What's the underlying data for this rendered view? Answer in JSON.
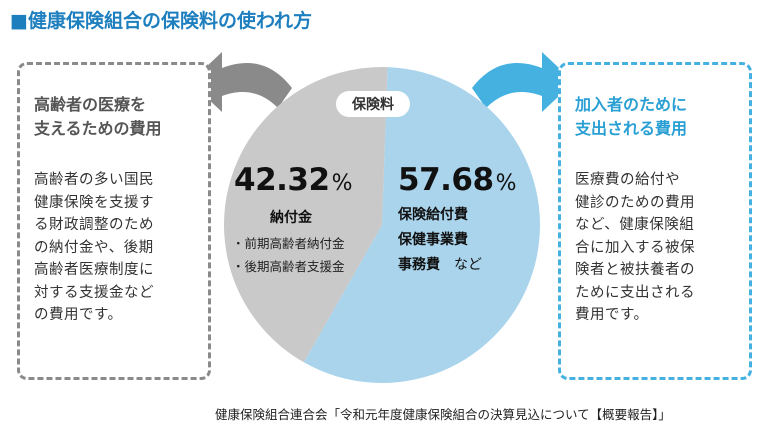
{
  "title": "■健康保険組合の保険料の使われ方",
  "center_label": "保険料",
  "left_box": {
    "heading_line1": "高齢者の医療を",
    "heading_line2": "支えるための費用",
    "body_lines": [
      "高齢者の多い国民",
      "健康保険を支援す",
      "る財政調整のため",
      "の納付金や、後期",
      "高齢者医療制度に",
      "対する支援金など",
      "の費用です。"
    ]
  },
  "right_box": {
    "heading_line1": "加入者のために",
    "heading_line2": "支出される費用",
    "body_lines": [
      "医療費の給付や",
      "健診のための費用",
      "など、健康保険組",
      "合に加入する被保",
      "険者と被扶養者の",
      "ために支出される",
      "費用です。"
    ]
  },
  "chart_data": {
    "type": "pie",
    "title": "",
    "slices": [
      {
        "label": "納付金",
        "value": 42.32,
        "value_text": "42.32",
        "unit": "%",
        "items": [
          "・前期高齢者納付金",
          "・後期高齢者支援金"
        ],
        "color": "#c9c9c9"
      },
      {
        "label": "保険給付費",
        "value": 57.68,
        "value_text": "57.68",
        "unit": "%",
        "items": [
          "保険給付費",
          "保健事業費",
          "事務費"
        ],
        "items_suffix": "など",
        "color": "#a9d4ec"
      }
    ]
  },
  "colors": {
    "accent_blue": "#1e7fbf",
    "left_arrow": "#8a8a8a",
    "right_arrow": "#45b1e0"
  },
  "source": "健康保険組合連合会「令和元年度健康保険組合の決算見込について【概要報告】」"
}
